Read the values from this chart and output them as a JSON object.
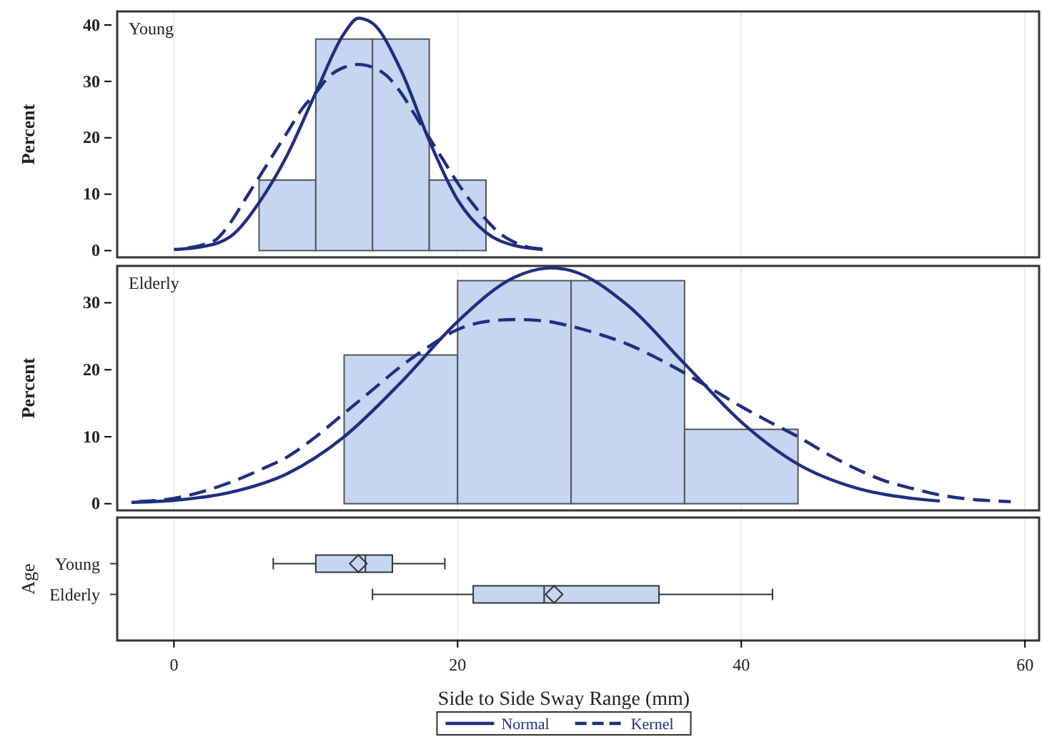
{
  "chart_data": [
    {
      "type": "histogram",
      "title": "Young",
      "ylabel": "Percent",
      "bins": [
        6,
        10,
        14,
        18,
        22
      ],
      "values": [
        12.5,
        37.5,
        37.5,
        12.5
      ],
      "color": "#c5d5f2",
      "xlim": [
        -4,
        61
      ],
      "xticks": [
        0,
        20,
        40,
        60
      ],
      "ylim": [
        -1.2,
        42.4
      ],
      "yticks": [
        0,
        10,
        20,
        30,
        40
      ],
      "tick_labels": "y",
      "grid": "x",
      "marker": "none",
      "series": [
        {
          "type": "line",
          "color": "#1f2f7f",
          "line_style": "solid",
          "x": [
            0,
            2,
            4,
            6,
            8,
            10,
            12,
            13,
            14,
            16,
            18,
            20,
            22,
            24,
            26
          ],
          "values": [
            0.2,
            0.7,
            2.5,
            8.5,
            17,
            28,
            38.5,
            41.2,
            40.3,
            32,
            19.5,
            9,
            3.2,
            0.9,
            0.2
          ]
        },
        {
          "type": "line",
          "color": "#1f2f7f",
          "line_style": "dashed",
          "x": [
            1,
            2,
            3,
            4,
            5,
            6,
            7,
            8,
            9,
            10,
            11,
            12,
            13,
            14,
            15,
            16,
            17,
            18,
            19,
            20,
            21,
            22,
            23,
            24,
            25,
            26
          ],
          "values": [
            0.5,
            1,
            2,
            5,
            9,
            13,
            17,
            21,
            25,
            28,
            31,
            32.5,
            33,
            32.5,
            31,
            28,
            24,
            20,
            16,
            12,
            8.5,
            5.5,
            3,
            1.5,
            0.6,
            0.3
          ]
        }
      ]
    },
    {
      "type": "histogram",
      "title": "Elderly",
      "ylabel": "Percent",
      "bins": [
        12,
        20,
        28,
        36,
        44
      ],
      "values": [
        22.2,
        33.3,
        33.3,
        11.1
      ],
      "color": "#c5d5f2",
      "xlim": [
        -4,
        61
      ],
      "xticks": [
        0,
        20,
        40,
        60
      ],
      "ylim": [
        -1,
        35.5
      ],
      "yticks": [
        0,
        10,
        20,
        30
      ],
      "tick_labels": "y",
      "grid": "x",
      "marker": "none",
      "legend": "bottom",
      "series": [
        {
          "name": "Normal",
          "type": "line",
          "color": "#1f2f7f",
          "line_style": "solid",
          "x": [
            -3,
            0,
            4,
            8,
            12,
            16,
            20,
            24,
            26.6,
            28,
            32,
            36,
            40,
            44,
            48,
            52,
            54
          ],
          "values": [
            0.2,
            0.5,
            1.7,
            4.5,
            10,
            18.1,
            27.2,
            33.8,
            35.2,
            34.8,
            29.6,
            20.9,
            12.2,
            5.9,
            2.4,
            0.8,
            0.4
          ]
        },
        {
          "name": "Kernel",
          "type": "line",
          "color": "#1f2f7f",
          "line_style": "dashed",
          "x": [
            -2.5,
            0,
            2,
            4,
            6,
            8,
            10,
            12,
            14,
            16,
            18,
            20,
            22,
            24,
            26,
            28,
            30,
            32,
            34,
            36,
            38,
            40,
            42,
            44,
            46,
            48,
            50,
            52,
            54,
            56,
            58,
            59
          ],
          "values": [
            0.3,
            0.8,
            1.8,
            3.2,
            5,
            7,
            10,
            13.5,
            17,
            20.5,
            23.5,
            26,
            27.2,
            27.5,
            27.3,
            26.5,
            25.3,
            23.8,
            21.8,
            19.5,
            17,
            14.5,
            12.2,
            10,
            7.5,
            5.3,
            3.5,
            2.3,
            1.3,
            0.7,
            0.4,
            0.3
          ]
        }
      ]
    },
    {
      "type": "box",
      "orientation": "horizontal",
      "xlabel": "Side to Side Sway Range (mm)",
      "ylabel": "Age",
      "categories": [
        "Young",
        "Elderly"
      ],
      "color": "#c5d5f2",
      "xlim": [
        -4,
        61
      ],
      "xticks": [
        0,
        20,
        40,
        60
      ],
      "grid": "x",
      "boxes": [
        {
          "low": 7,
          "q1": 10,
          "median": 13.5,
          "q3": 15.4,
          "high": 19.1,
          "mean": 13
        },
        {
          "low": 14,
          "q1": 21.1,
          "median": 26.1,
          "q3": 34.2,
          "high": 42.2,
          "mean": 26.8
        }
      ]
    }
  ]
}
